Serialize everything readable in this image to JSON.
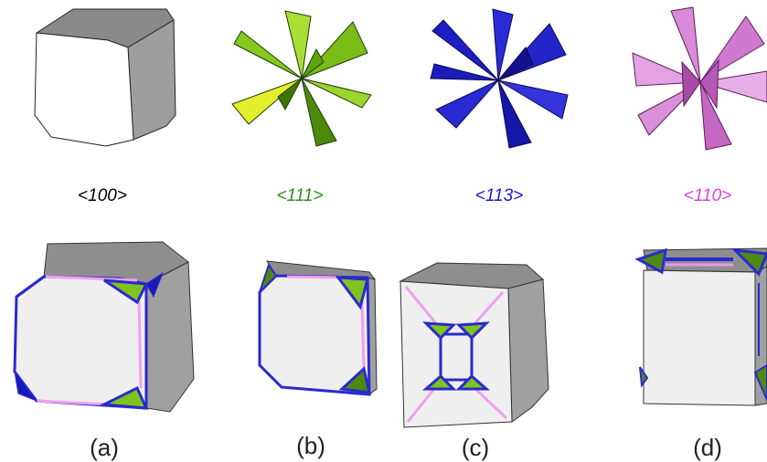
{
  "directions": [
    {
      "label": "<100>",
      "color": "#000000"
    },
    {
      "label": "<111>",
      "color": "#2e8b1e"
    },
    {
      "label": "<113>",
      "color": "#1a1acc"
    },
    {
      "label": "<110>",
      "color": "#e040e0"
    }
  ],
  "panels": [
    {
      "label": "(a)"
    },
    {
      "label": "(b)"
    },
    {
      "label": "(c)"
    },
    {
      "label": "(d)"
    }
  ],
  "colors": {
    "green_facet": "#7ec41a",
    "yellow_facet": "#e8ee2a",
    "blue_facet": "#1a1ab8",
    "pink_facet": "#e39be3",
    "cube_front": "#efefef",
    "cube_top": "#8f8f8f",
    "cube_side": "#a3a3a3",
    "edge_blue": "#2a2ad0",
    "edge_pink": "#f0a0f0"
  }
}
